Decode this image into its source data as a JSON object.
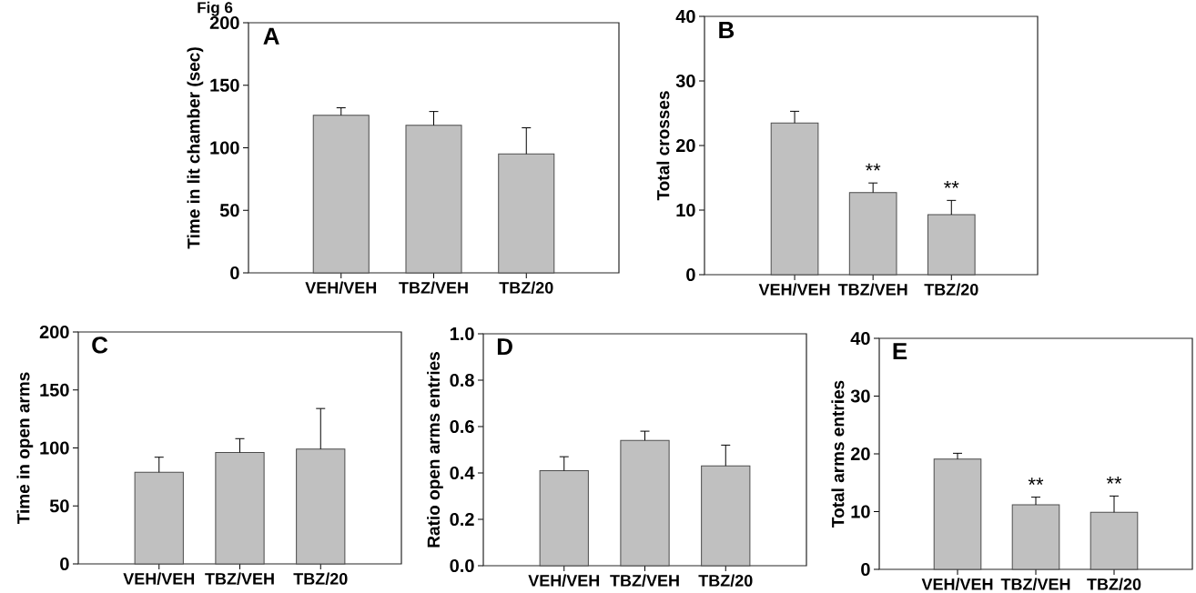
{
  "chart_data": [
    {
      "type": "bar",
      "title": "A",
      "ylabel": "Time in lit chamber (sec)",
      "categories": [
        "VEH/VEH",
        "TBZ/VEH",
        "TBZ/20"
      ],
      "values": [
        126,
        118,
        95
      ],
      "errors": [
        6,
        11,
        21
      ],
      "color": "#c0c0c0",
      "ylim": [
        0,
        200
      ],
      "yticks": [
        0,
        50,
        100,
        150,
        200
      ],
      "annotations": [
        "Fig 6"
      ]
    },
    {
      "type": "bar",
      "title": "B",
      "ylabel": "Total crosses",
      "categories": [
        "VEH/VEH",
        "TBZ/VEH",
        "TBZ/20"
      ],
      "values": [
        23.5,
        12.7,
        9.3
      ],
      "errors": [
        1.8,
        1.5,
        2.2
      ],
      "color": "#c0c0c0",
      "ylim": [
        0,
        40
      ],
      "yticks": [
        0,
        10,
        20,
        30,
        40
      ],
      "annotations": [
        "**",
        "**"
      ]
    },
    {
      "type": "bar",
      "title": "C",
      "ylabel": "Time in open arms",
      "categories": [
        "VEH/VEH",
        "TBZ/VEH",
        "TBZ/20"
      ],
      "values": [
        79,
        96,
        99
      ],
      "errors": [
        13,
        12,
        35
      ],
      "color": "#c0c0c0",
      "ylim": [
        0,
        200
      ],
      "yticks": [
        0,
        50,
        100,
        150,
        200
      ]
    },
    {
      "type": "bar",
      "title": "D",
      "ylabel": "Ratio open arms entries",
      "categories": [
        "VEH/VEH",
        "TBZ/VEH",
        "TBZ/20"
      ],
      "values": [
        0.41,
        0.54,
        0.43
      ],
      "errors": [
        0.06,
        0.04,
        0.09
      ],
      "color": "#c0c0c0",
      "ylim": [
        0,
        1
      ],
      "yticks": [
        {
          "value": 0,
          "label": "0.0"
        },
        0.2,
        0.4,
        0.6,
        0.8,
        {
          "value": 1,
          "label": "1.0"
        }
      ]
    },
    {
      "type": "bar",
      "title": "E",
      "ylabel": "Total arms entries",
      "categories": [
        "VEH/VEH",
        "TBZ/VEH",
        "TBZ/20"
      ],
      "values": [
        19.1,
        11.2,
        9.9
      ],
      "errors": [
        1,
        1.3,
        2.8
      ],
      "color": "#c0c0c0",
      "ylim": [
        0,
        40
      ],
      "yticks": [
        0,
        10,
        20,
        30,
        40
      ],
      "annotations": [
        "**",
        "**"
      ]
    }
  ]
}
